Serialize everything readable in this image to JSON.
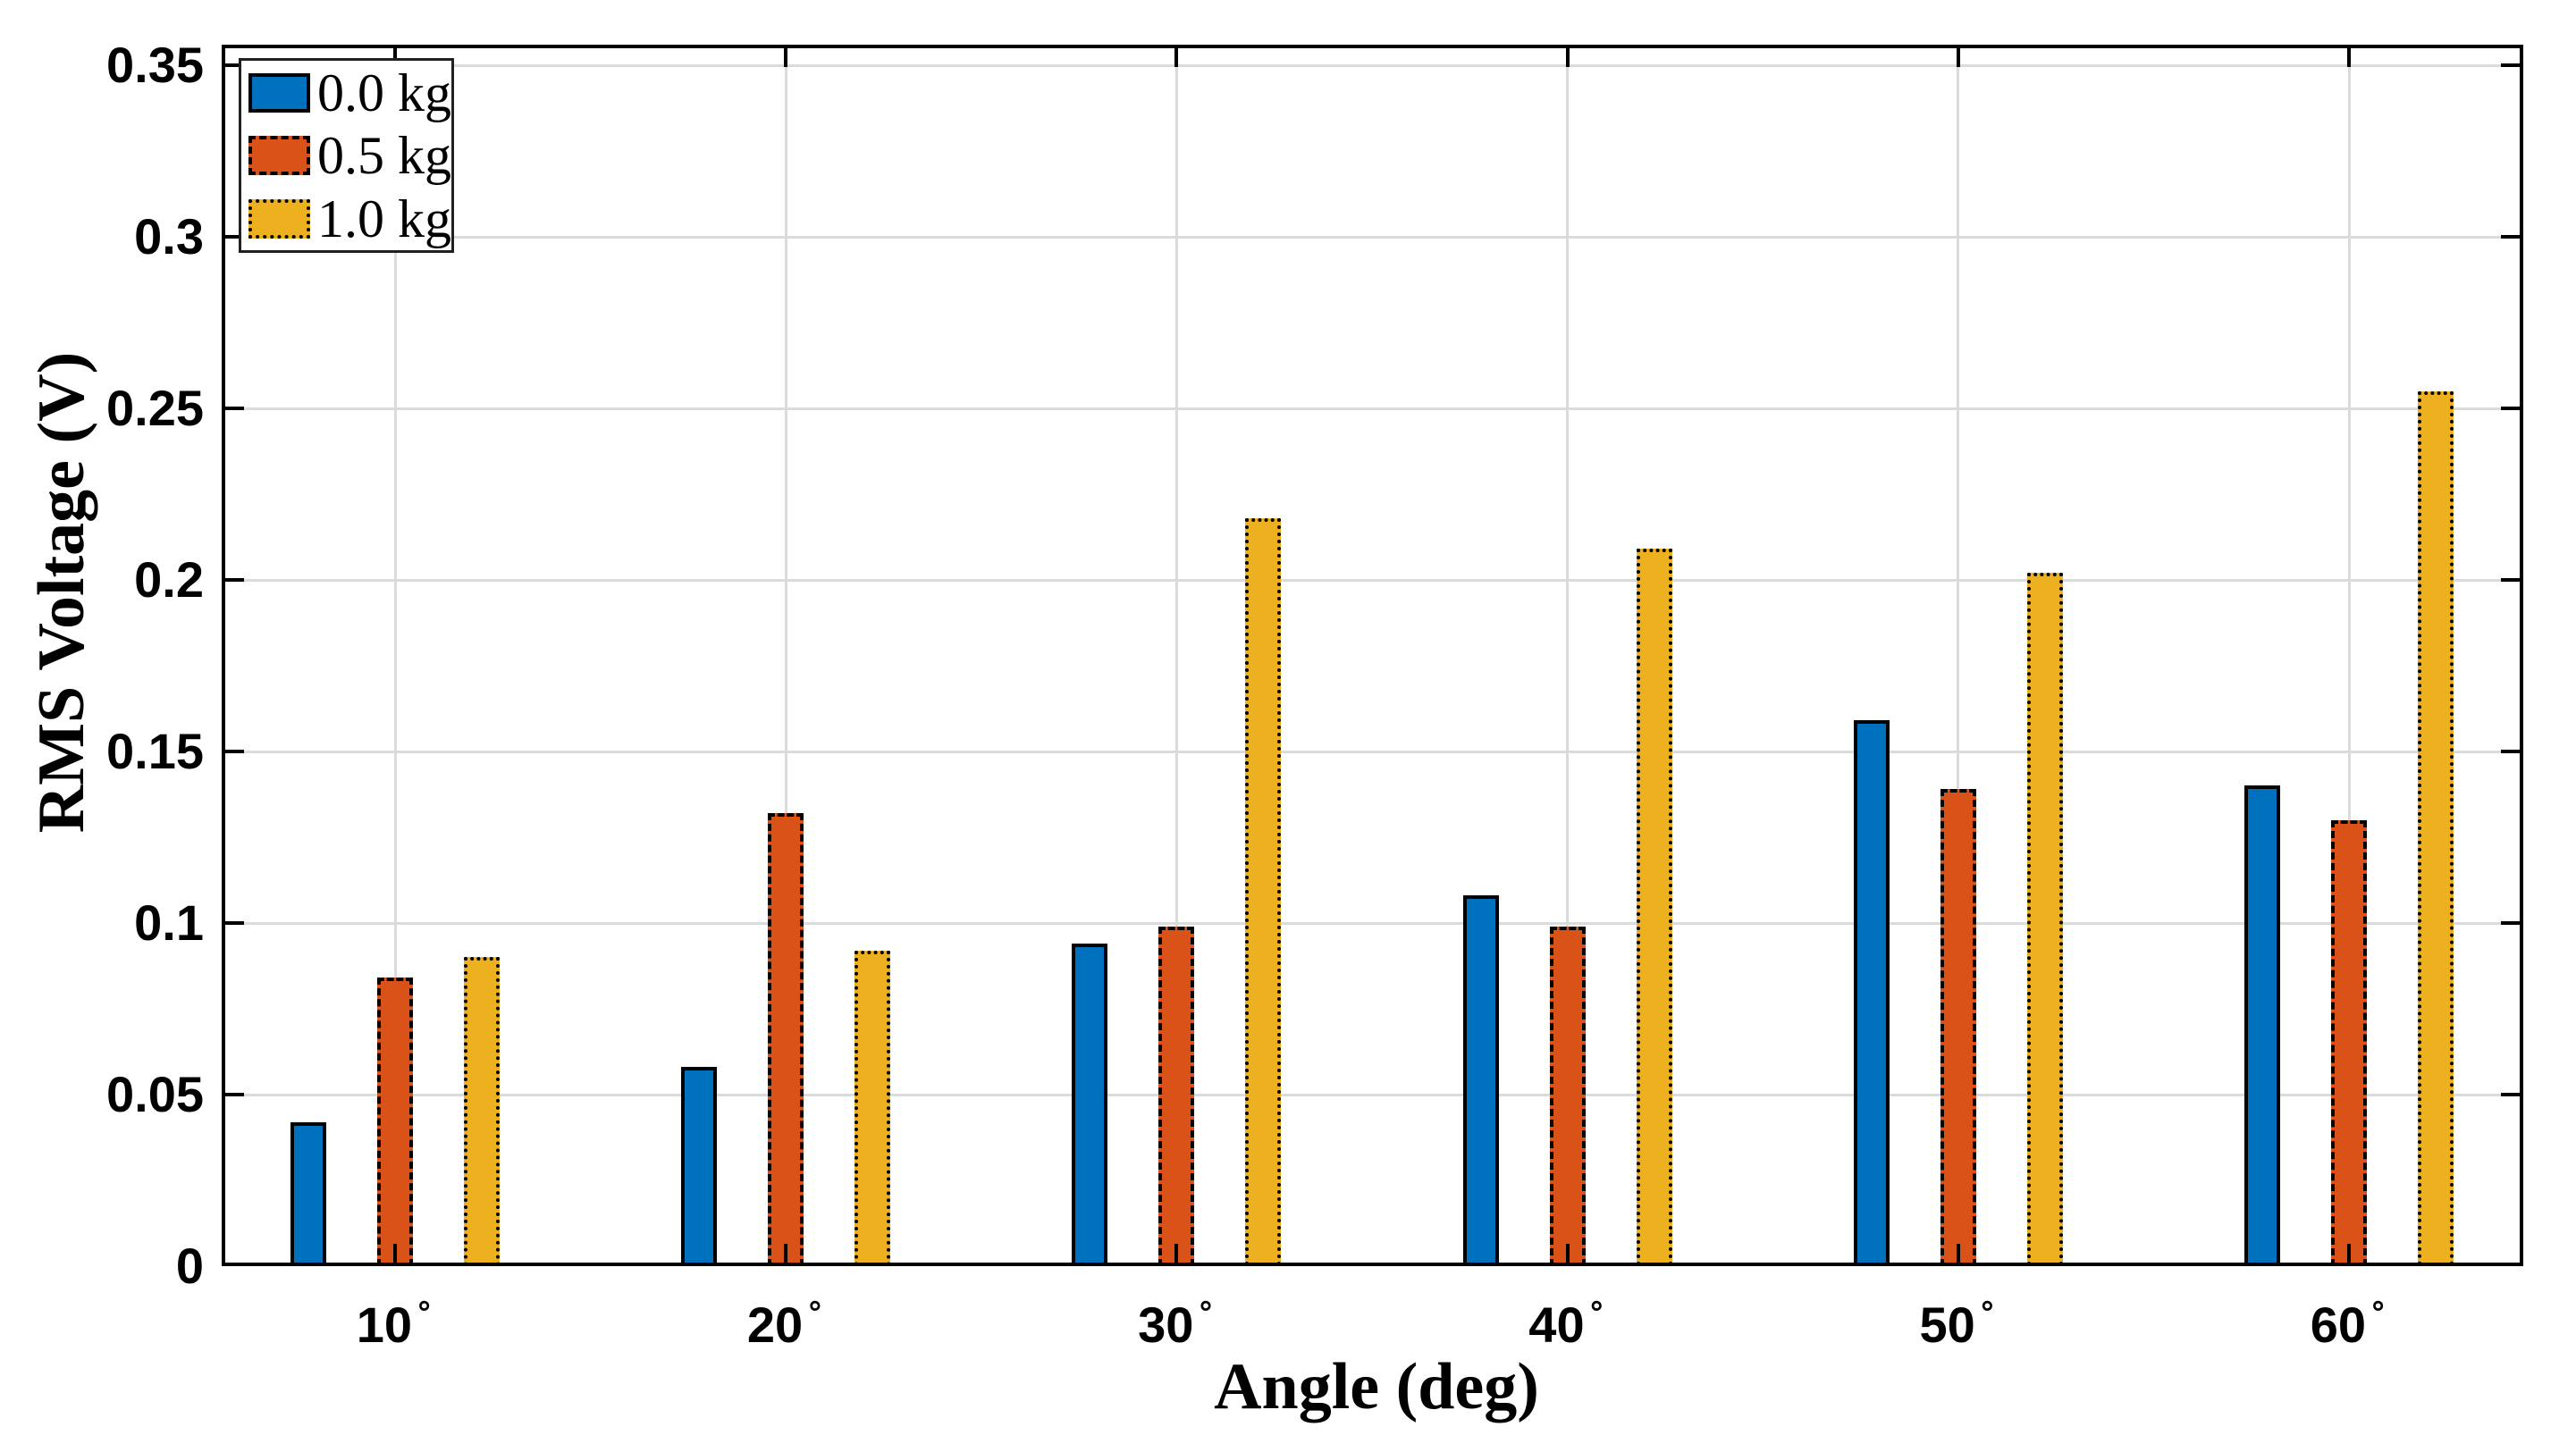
{
  "figure": {
    "background_color": "#FFFFFF"
  },
  "axes": {
    "y_tick_labels": [
      "0",
      "0.05",
      "0.1",
      "0.15",
      "0.2",
      "0.25",
      "0.3",
      "0.35"
    ],
    "y_tick_values": [
      0,
      0.05,
      0.1,
      0.15,
      0.2,
      0.25,
      0.3,
      0.35
    ],
    "x_tick_suffix": "∘",
    "grid": "on",
    "grid_color": "#DBDBDB",
    "axis_color": "#000000"
  },
  "legend": {
    "position": "top-left"
  },
  "chart_data": {
    "type": "bar",
    "title": "",
    "xlabel": "Angle (deg)",
    "ylabel": "RMS Voltage (V)",
    "categories": [
      "10°",
      "20°",
      "30°",
      "40°",
      "50°",
      "60°"
    ],
    "series": [
      {
        "name": "0.0 kg",
        "color": "#0072BD",
        "edge_style": "solid",
        "values": [
          0.042,
          0.058,
          0.094,
          0.108,
          0.159,
          0.14
        ]
      },
      {
        "name": "0.5 kg",
        "color": "#D95319",
        "edge_style": "dashed",
        "values": [
          0.084,
          0.132,
          0.099,
          0.099,
          0.139,
          0.13
        ]
      },
      {
        "name": "1.0 kg",
        "color": "#EDB120",
        "edge_style": "dotted",
        "values": [
          0.09,
          0.092,
          0.218,
          0.209,
          0.202,
          0.255
        ]
      }
    ],
    "ylim": [
      0,
      0.356
    ],
    "grid": "on",
    "legend_position": "top-left",
    "edge_color": "#000000"
  }
}
